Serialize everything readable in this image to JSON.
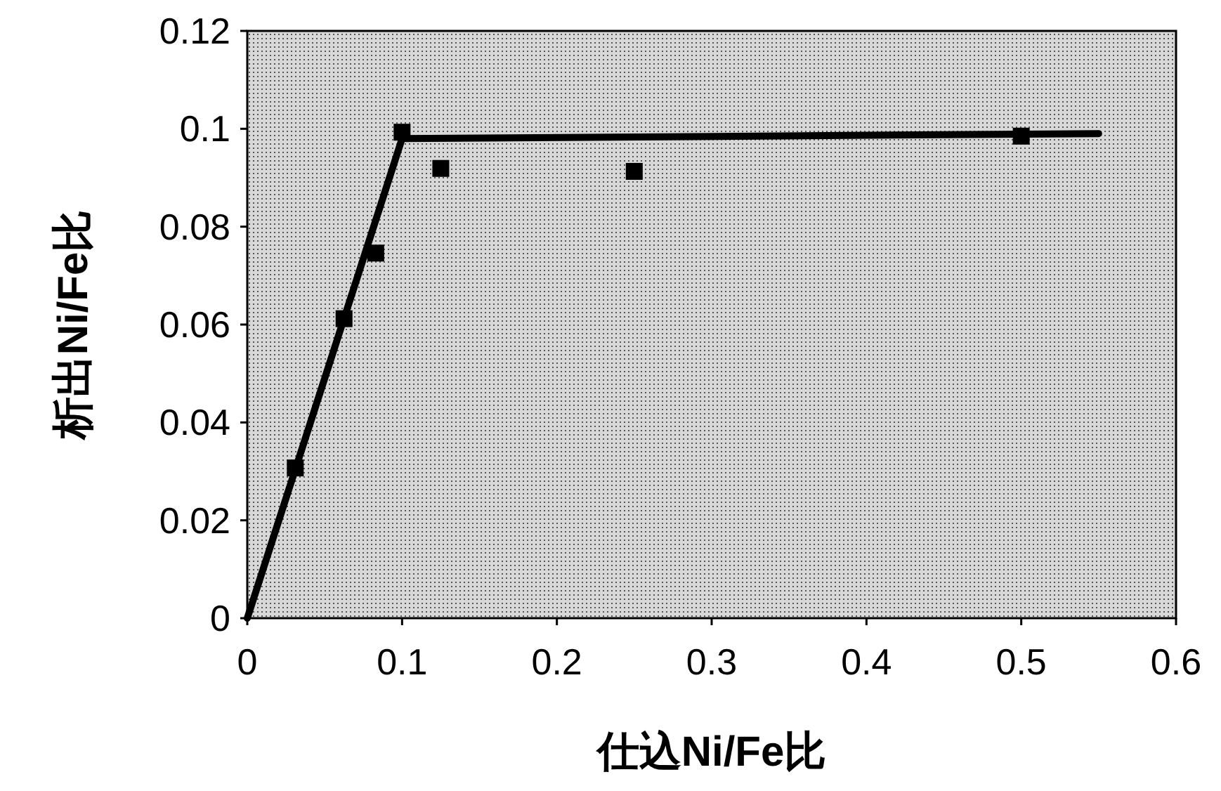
{
  "chart_data": {
    "type": "scatter",
    "xlabel": "仕込Ni/Fe比",
    "ylabel": "析出Ni/Fe比",
    "xlim": [
      0,
      0.6
    ],
    "ylim": [
      0,
      0.12
    ],
    "xticks": [
      0,
      0.1,
      0.2,
      0.3,
      0.4,
      0.5,
      0.6
    ],
    "yticks": [
      0,
      0.02,
      0.04,
      0.06,
      0.08,
      0.1,
      0.12
    ],
    "marker": "square",
    "grid": false,
    "series": [
      {
        "type": "scatter",
        "color": "#000000",
        "x": [
          0.031,
          0.0625,
          0.083,
          0.1,
          0.125,
          0.25,
          0.5
        ],
        "values": [
          0.0307,
          0.0612,
          0.0746,
          0.0993,
          0.0919,
          0.0913,
          0.0985
        ]
      },
      {
        "type": "line",
        "color": "#000000",
        "marker": "none",
        "x": [
          0,
          0.1,
          0.55
        ],
        "values": [
          0,
          0.098,
          0.099
        ]
      }
    ]
  }
}
